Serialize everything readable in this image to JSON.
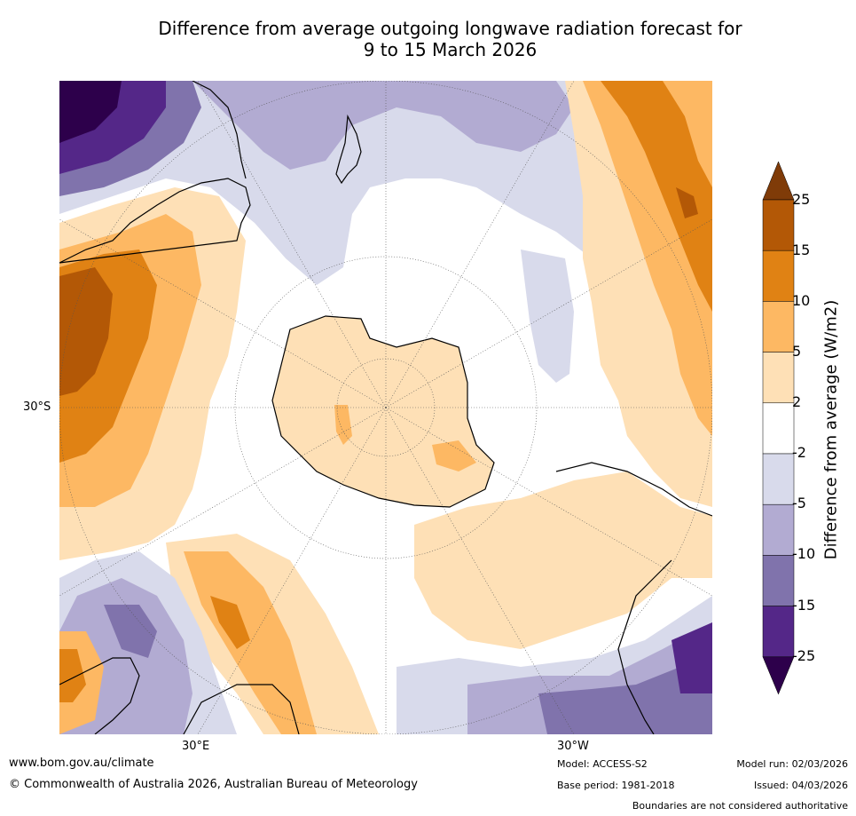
{
  "title": "Difference from average outgoing longwave radiation forecast for\n9 to 15 March 2026",
  "map": {
    "lat_label": "30°S",
    "lon_labels": [
      "30°E",
      "30°W"
    ]
  },
  "colorbar": {
    "title": "Difference from average (W/m2)",
    "tick_labels": [
      "25",
      "15",
      "10",
      "5",
      "2",
      "-2",
      "-5",
      "-10",
      "-15",
      "-25"
    ],
    "bins": [
      {
        "range": "above 25",
        "color": "#7f3b08"
      },
      {
        "range": "15 to 25",
        "color": "#b35806"
      },
      {
        "range": "10 to 15",
        "color": "#e08214"
      },
      {
        "range": "5 to 10",
        "color": "#fdb863"
      },
      {
        "range": "2 to 5",
        "color": "#fee0b6"
      },
      {
        "range": "-2 to 2",
        "color": "#ffffff"
      },
      {
        "range": "-5 to -2",
        "color": "#d8daeb"
      },
      {
        "range": "-10 to -5",
        "color": "#b2abd2"
      },
      {
        "range": "-15 to -10",
        "color": "#8073ac"
      },
      {
        "range": "-25 to -15",
        "color": "#542788"
      },
      {
        "range": "below -25",
        "color": "#2d004b"
      }
    ]
  },
  "footer": {
    "website": "www.bom.gov.au/climate",
    "copyright": "© Commonwealth of Australia 2026, Australian Bureau of Meteorology",
    "model": "Model: ACCESS-S2",
    "base_period": "Base period: 1981-2018",
    "model_run": "Model run: 02/03/2026",
    "issued": "Issued: 04/03/2026",
    "disclaimer": "Boundaries are not considered authoritative"
  }
}
